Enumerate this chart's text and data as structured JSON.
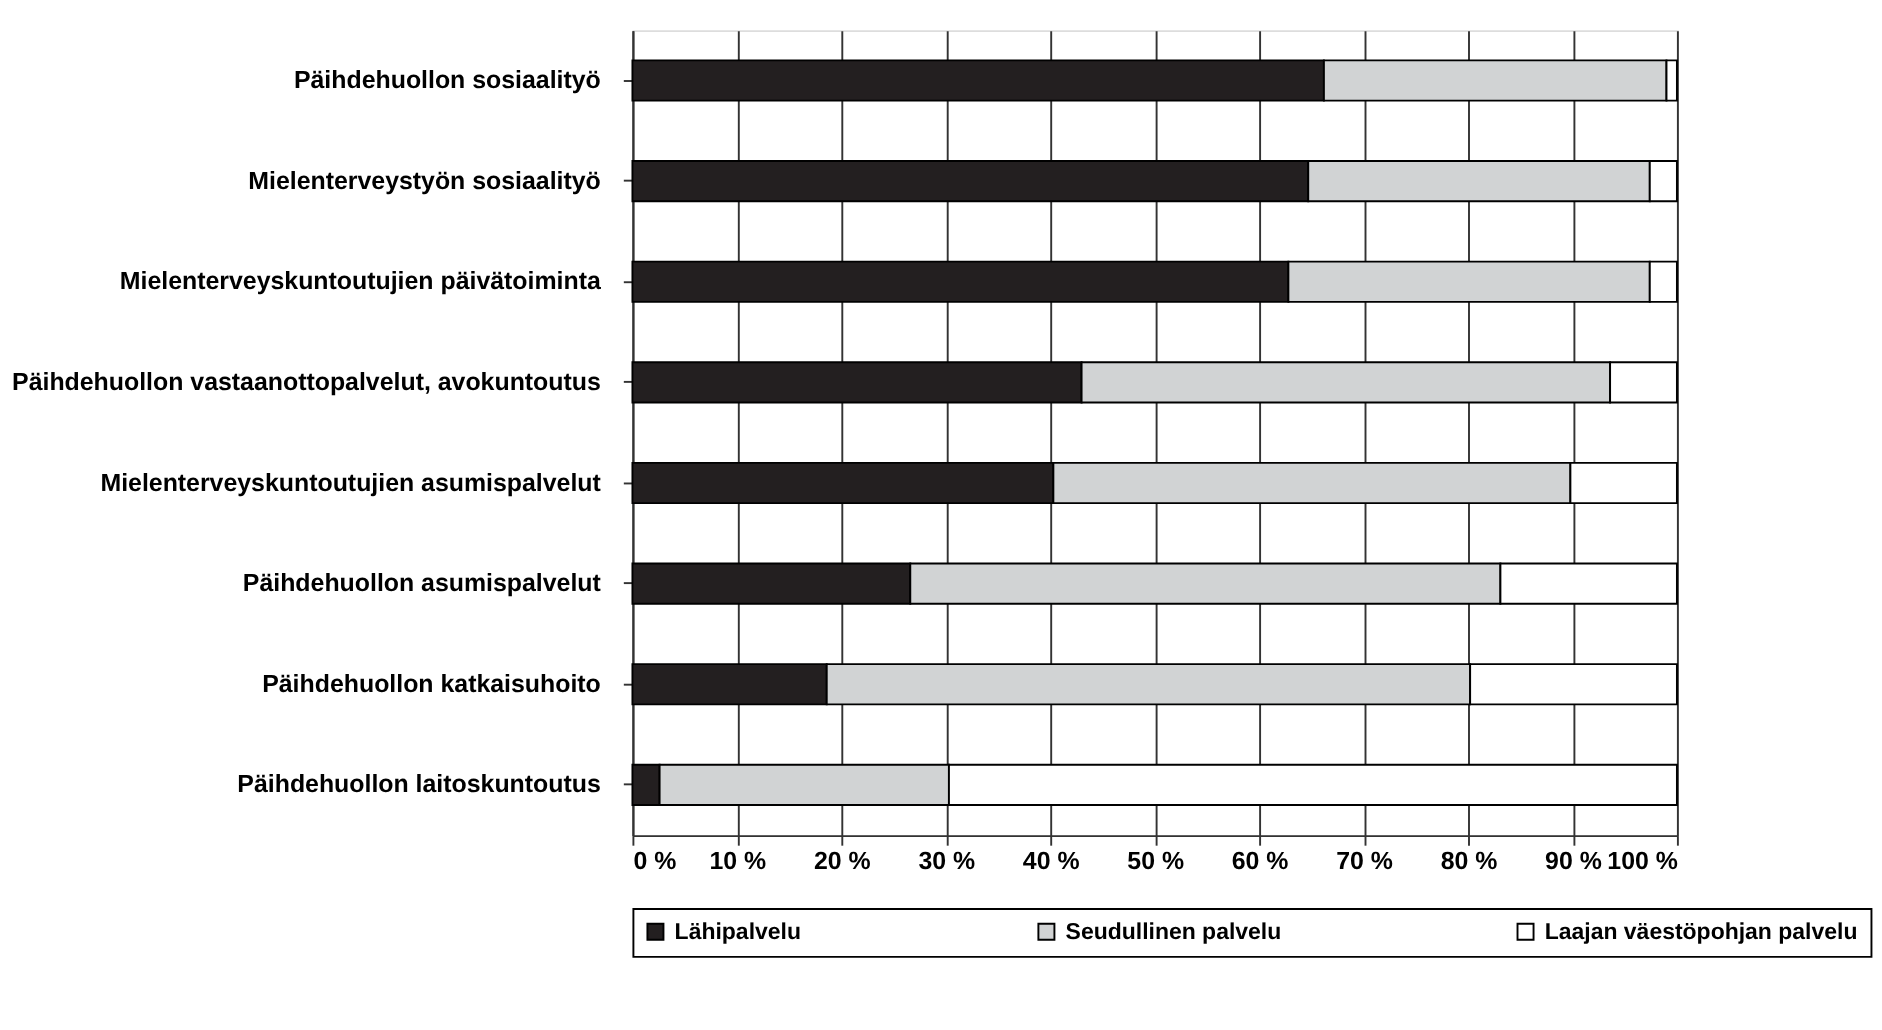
{
  "chart_data": {
    "type": "bar",
    "orientation": "horizontal",
    "stacked": true,
    "categories": [
      "Päihdehuollon sosiaalityö",
      "Mielenterveystyön sosiaalityö",
      "Mielenterveyskuntoutujien päivätoiminta",
      "Päihdehuollon vastaanottopalvelut, avokuntoutus",
      "Mielenterveyskuntoutujien asumispalvelut",
      "Päihdehuollon asumispalvelut",
      "Päihdehuollon katkaisuhoito",
      "Päihdehuollon laitoskuntoutus"
    ],
    "series": [
      {
        "name": "Lähipalvelu",
        "color": "#231f20",
        "values": [
          66.2,
          64.7,
          62.8,
          43.0,
          40.3,
          26.6,
          18.6,
          2.6
        ]
      },
      {
        "name": "Seudullinen palvelu",
        "color": "#d1d3d4",
        "values": [
          32.8,
          32.7,
          34.6,
          50.6,
          49.5,
          56.5,
          61.6,
          27.7
        ]
      },
      {
        "name": "Laajan väestöpohjan palvelu",
        "color": "#ffffff",
        "values": [
          1.0,
          2.6,
          2.6,
          6.4,
          10.2,
          16.9,
          19.8,
          69.7
        ]
      }
    ],
    "xlim": [
      0,
      100
    ],
    "xticks": [
      {
        "value": 0,
        "label": "0 %"
      },
      {
        "value": 10,
        "label": "10 %"
      },
      {
        "value": 20,
        "label": "20 %"
      },
      {
        "value": 30,
        "label": "30 %"
      },
      {
        "value": 40,
        "label": "40 %"
      },
      {
        "value": 50,
        "label": "50 %"
      },
      {
        "value": 60,
        "label": "60 %"
      },
      {
        "value": 70,
        "label": "70 %"
      },
      {
        "value": 80,
        "label": "80 %"
      },
      {
        "value": 90,
        "label": "90 %"
      },
      {
        "value": 100,
        "label": "100 %"
      }
    ],
    "grid": "x",
    "legend": "bottom"
  }
}
